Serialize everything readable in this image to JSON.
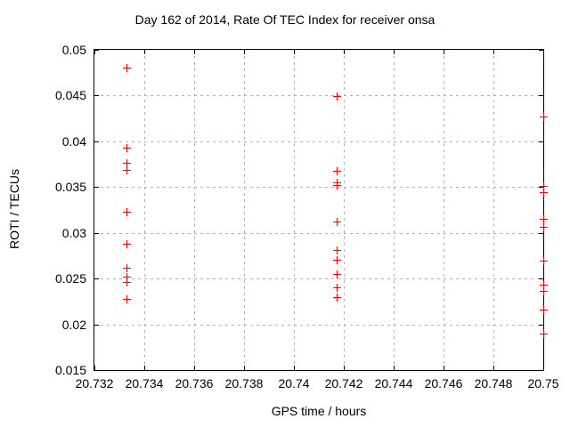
{
  "chart_data": {
    "type": "scatter",
    "title": "Day 162 of 2014, Rate Of TEC Index for receiver onsa",
    "xlabel": "GPS time / hours",
    "ylabel": "ROTI / TECUs",
    "xlim": [
      20.732,
      20.75
    ],
    "ylim": [
      0.015,
      0.05
    ],
    "grid": true,
    "legend": "none",
    "background": "#ffffff",
    "grid_color": "#b0b0b0",
    "axis_color": "#000000",
    "xticks": [
      {
        "value": 20.732,
        "label": "20.732"
      },
      {
        "value": 20.734,
        "label": "20.734"
      },
      {
        "value": 20.736,
        "label": "20.736"
      },
      {
        "value": 20.738,
        "label": "20.738"
      },
      {
        "value": 20.74,
        "label": "20.74"
      },
      {
        "value": 20.742,
        "label": "20.742"
      },
      {
        "value": 20.744,
        "label": "20.744"
      },
      {
        "value": 20.746,
        "label": "20.746"
      },
      {
        "value": 20.748,
        "label": "20.748"
      },
      {
        "value": 20.75,
        "label": "20.75"
      }
    ],
    "yticks": [
      {
        "value": 0.015,
        "label": "0.015"
      },
      {
        "value": 0.02,
        "label": "0.02"
      },
      {
        "value": 0.025,
        "label": "0.025"
      },
      {
        "value": 0.03,
        "label": "0.03"
      },
      {
        "value": 0.035,
        "label": "0.035"
      },
      {
        "value": 0.04,
        "label": "0.04"
      },
      {
        "value": 0.045,
        "label": "0.045"
      },
      {
        "value": 0.05,
        "label": "0.05"
      }
    ],
    "series": [
      {
        "marker": "plus",
        "color": "#ff0000",
        "points": [
          [
            20.7333,
            0.0481
          ],
          [
            20.7333,
            0.0393
          ],
          [
            20.7333,
            0.0377
          ],
          [
            20.7333,
            0.0369
          ],
          [
            20.7333,
            0.0323
          ],
          [
            20.7333,
            0.0288
          ],
          [
            20.7333,
            0.0262
          ],
          [
            20.7333,
            0.0252
          ],
          [
            20.7333,
            0.0246
          ],
          [
            20.7333,
            0.0228
          ],
          [
            20.7417,
            0.0449
          ],
          [
            20.7417,
            0.0368
          ],
          [
            20.7417,
            0.0355
          ],
          [
            20.7417,
            0.0352
          ],
          [
            20.7417,
            0.0312
          ],
          [
            20.7417,
            0.0281
          ],
          [
            20.7417,
            0.0271
          ],
          [
            20.7417,
            0.0255
          ],
          [
            20.7417,
            0.024
          ],
          [
            20.7417,
            0.023
          ],
          [
            20.75,
            0.0427
          ],
          [
            20.75,
            0.0351
          ],
          [
            20.75,
            0.0344
          ],
          [
            20.75,
            0.0315
          ],
          [
            20.75,
            0.0307
          ],
          [
            20.75,
            0.027
          ],
          [
            20.75,
            0.0243
          ],
          [
            20.75,
            0.0237
          ],
          [
            20.75,
            0.0216
          ],
          [
            20.75,
            0.019
          ]
        ]
      }
    ]
  }
}
